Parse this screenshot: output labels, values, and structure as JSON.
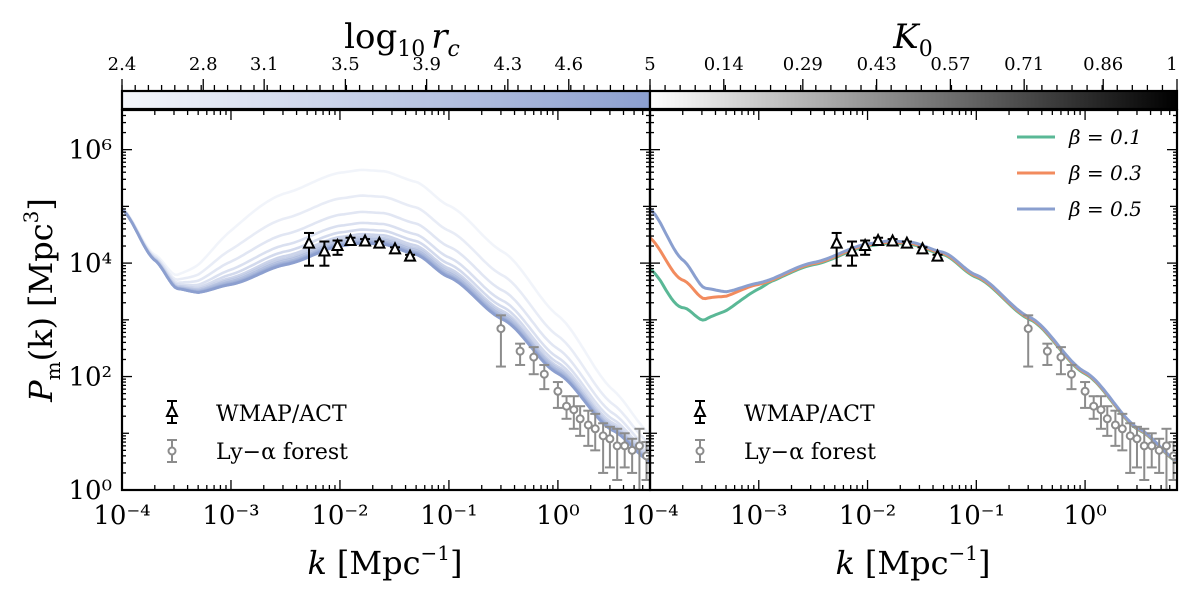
{
  "chart_data": [
    {
      "type": "line",
      "panel": "left",
      "xlabel": "k [Mpc⁻¹]",
      "ylabel": "Pm(k) [Mpc³]",
      "xscale": "log",
      "yscale": "log",
      "xlim": [
        0.0001,
        7
      ],
      "ylim": [
        1,
        5000000
      ],
      "x_ticks": [
        "10⁻⁴",
        "10⁻³",
        "10⁻²",
        "10⁻¹",
        "10⁰"
      ],
      "y_ticks": [
        "10⁰",
        "10²",
        "10⁴",
        "10⁶"
      ],
      "colorbar": {
        "label": "log₁₀ rc",
        "ticks": [
          "2.4",
          "2.8",
          "3.1",
          "3.5",
          "3.9",
          "4.3",
          "4.6",
          "5"
        ],
        "range": [
          2.4,
          5
        ],
        "color_low": "#f2f4fb",
        "color_high": "#8c9fcf"
      },
      "series_log10_rc": [
        2.4,
        2.6,
        2.8,
        3.0,
        3.2,
        3.4,
        3.6,
        3.8,
        4.0,
        4.2,
        4.4,
        4.6,
        4.8,
        5.0
      ],
      "series_amplification": [
        20,
        7,
        3.6,
        2.3,
        1.75,
        1.45,
        1.3,
        1.2,
        1.12,
        1.07,
        1.04,
        1.02,
        1.01,
        1.0
      ],
      "legend": [
        "WMAP/ACT",
        "Ly−α forest"
      ],
      "legend_position": "lower-left",
      "wmap_act": [
        {
          "k": 0.0052,
          "P": 22000,
          "lo": 9000,
          "hi": 34000
        },
        {
          "k": 0.0072,
          "P": 16000,
          "lo": 9000,
          "hi": 24000
        },
        {
          "k": 0.0095,
          "P": 20000,
          "lo": 14000,
          "hi": 25000
        },
        {
          "k": 0.0125,
          "P": 24500,
          "lo": 21000,
          "hi": 28000
        },
        {
          "k": 0.017,
          "P": 24000,
          "lo": 21500,
          "hi": 26500
        },
        {
          "k": 0.023,
          "P": 22000,
          "lo": 20000,
          "hi": 24000
        },
        {
          "k": 0.032,
          "P": 17500,
          "lo": 16000,
          "hi": 19000
        },
        {
          "k": 0.044,
          "P": 13000,
          "lo": 12000,
          "hi": 14000
        }
      ],
      "ly_alpha": [
        {
          "k": 0.3,
          "P": 700,
          "lo": 150,
          "hi": 1200
        },
        {
          "k": 0.45,
          "P": 280,
          "lo": 160,
          "hi": 380
        },
        {
          "k": 0.6,
          "P": 220,
          "lo": 110,
          "hi": 330
        },
        {
          "k": 0.75,
          "P": 110,
          "lo": 60,
          "hi": 160
        },
        {
          "k": 1.0,
          "P": 55,
          "lo": 28,
          "hi": 80
        },
        {
          "k": 1.2,
          "P": 30,
          "lo": 18,
          "hi": 45
        },
        {
          "k": 1.4,
          "P": 26,
          "lo": 12,
          "hi": 45
        },
        {
          "k": 1.6,
          "P": 18,
          "lo": 9,
          "hi": 30
        },
        {
          "k": 1.9,
          "P": 14,
          "lo": 6,
          "hi": 25
        },
        {
          "k": 2.2,
          "P": 12,
          "lo": 5,
          "hi": 22
        },
        {
          "k": 2.6,
          "P": 9,
          "lo": 2,
          "hi": 15
        },
        {
          "k": 3.0,
          "P": 8,
          "lo": 2.5,
          "hi": 13
        },
        {
          "k": 3.5,
          "P": 6,
          "lo": 1.5,
          "hi": 12
        },
        {
          "k": 4.1,
          "P": 6,
          "lo": 2.5,
          "hi": 10
        },
        {
          "k": 4.8,
          "P": 5,
          "lo": 2,
          "hi": 8
        },
        {
          "k": 5.6,
          "P": 6,
          "lo": 1,
          "hi": 12
        },
        {
          "k": 6.5,
          "P": 4,
          "lo": 1.5,
          "hi": 7
        }
      ]
    },
    {
      "type": "line",
      "panel": "right",
      "xlabel": "k [Mpc⁻¹]",
      "xscale": "log",
      "yscale": "log",
      "xlim": [
        0.0001,
        7
      ],
      "ylim": [
        1,
        5000000
      ],
      "x_ticks": [
        "10⁻⁴",
        "10⁻³",
        "10⁻²",
        "10⁻¹",
        "10⁰"
      ],
      "colorbar": {
        "label": "K₀",
        "ticks": [
          "0.14",
          "0.29",
          "0.43",
          "0.57",
          "0.71",
          "0.86",
          "1"
        ],
        "range": [
          0,
          1
        ],
        "color_low": "#ffffff",
        "color_high": "#000000"
      },
      "series": [
        {
          "name": "β = 0.1",
          "color": "#5ab896",
          "low_k_P": 8000
        },
        {
          "name": "β = 0.3",
          "color": "#f28b5e",
          "low_k_P": 28000
        },
        {
          "name": "β = 0.5",
          "color": "#8a9fcf",
          "low_k_P": 90000
        }
      ],
      "legend": [
        "β = 0.1",
        "β = 0.3",
        "β = 0.5",
        "WMAP/ACT",
        "Ly−α forest"
      ],
      "legend_position": "top-right"
    }
  ],
  "labels": {
    "left_cbar_label": "log",
    "left_cbar_sub": "10",
    "left_cbar_var": "r",
    "left_cbar_var_sub": "c",
    "right_cbar_label": "K",
    "right_cbar_sub": "0",
    "xlabel_k": "k",
    "xlabel_unit": "[Mpc",
    "xlabel_exp": "−1",
    "xlabel_close": "]",
    "ylabel_P": "P",
    "ylabel_sub": "m",
    "ylabel_arg": "(k)",
    "ylabel_unit": "[Mpc",
    "ylabel_exp": "3",
    "ylabel_close": "]",
    "legend_wmap": "WMAP/ACT",
    "legend_lya": "Ly−α forest",
    "beta1": "β = 0.1",
    "beta2": "β = 0.3",
    "beta3": "β = 0.5"
  }
}
